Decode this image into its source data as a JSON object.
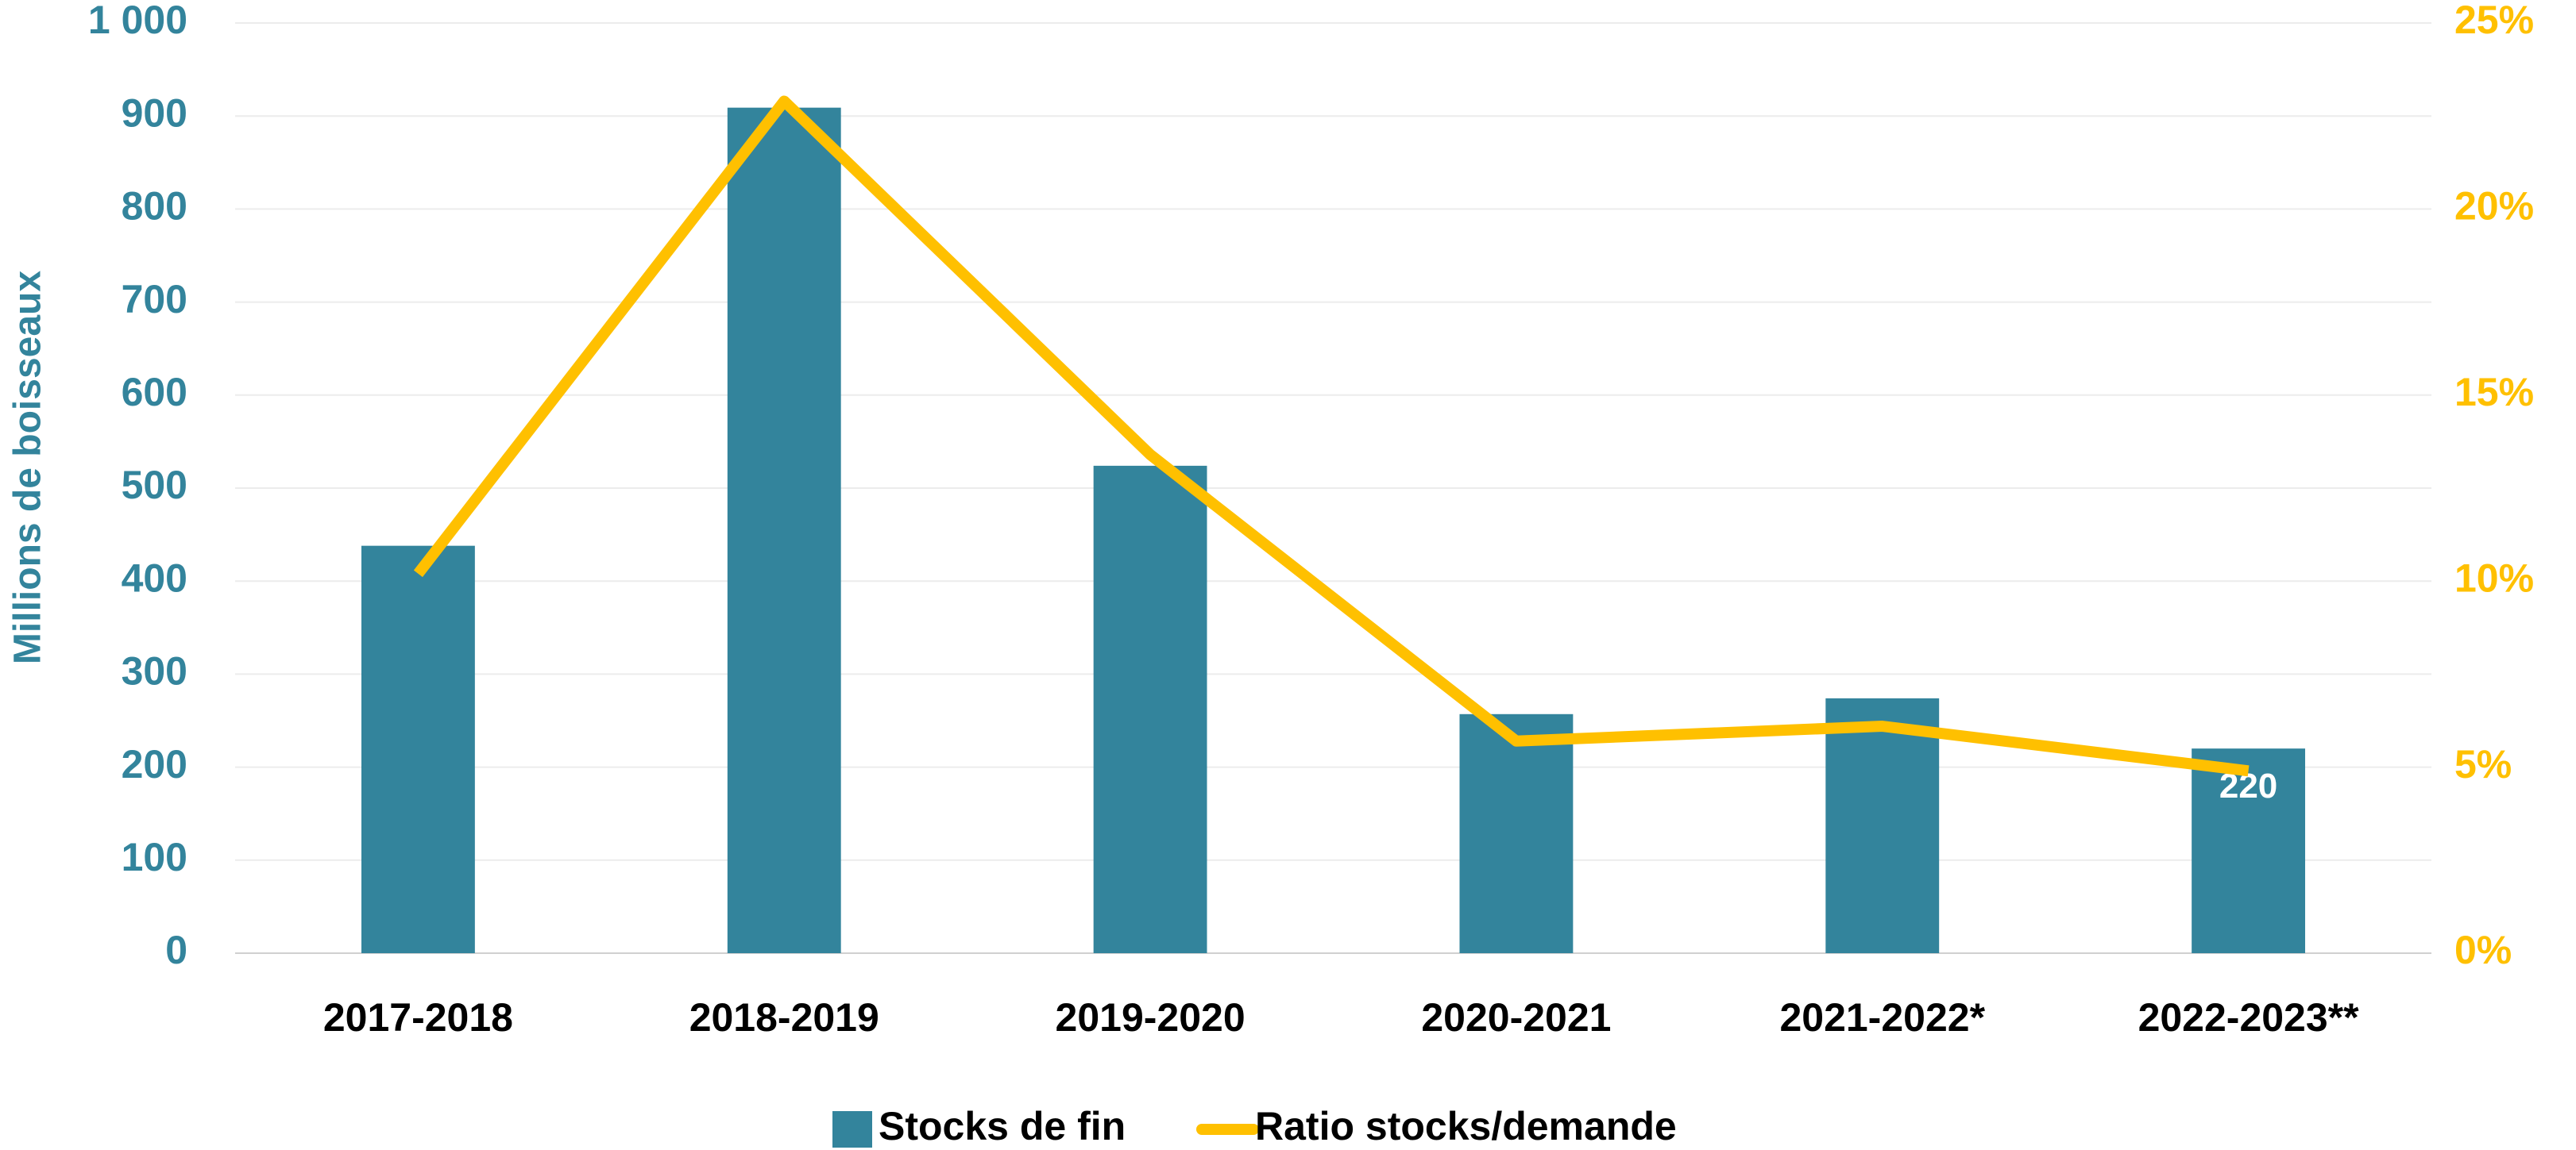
{
  "chart_data": {
    "type": "bar_line",
    "categories": [
      "2017-2018",
      "2018-2019",
      "2019-2020",
      "2020-2021",
      "2021-2022*",
      "2022-2023**"
    ],
    "series": [
      {
        "name": "Stocks de fin",
        "type": "bar",
        "color": "#33849c",
        "values": [
          438,
          909,
          524,
          257,
          274,
          220
        ],
        "value_labels": [
          null,
          null,
          null,
          null,
          null,
          "220"
        ]
      },
      {
        "name": "Ratio stocks/demande",
        "type": "line",
        "axis": "y2",
        "color": "#ffc000",
        "values": [
          10.2,
          22.9,
          13.4,
          5.7,
          6.1,
          4.9
        ]
      }
    ],
    "ylabel": "Millions de boisseaux",
    "ylim": [
      0,
      1000
    ],
    "yticks": [
      0,
      100,
      200,
      300,
      400,
      500,
      600,
      700,
      800,
      900,
      {
        "value": 1000,
        "label": "1 000"
      }
    ],
    "y2lim": [
      0,
      25
    ],
    "y2ticks": [
      {
        "value": 0,
        "label": "0%"
      },
      {
        "value": 5,
        "label": "5%"
      },
      {
        "value": 10,
        "label": "10%"
      },
      {
        "value": 15,
        "label": "15%"
      },
      {
        "value": 20,
        "label": "20%"
      },
      {
        "value": 25,
        "label": "25%"
      }
    ],
    "grid": true,
    "legend": "bottom"
  }
}
